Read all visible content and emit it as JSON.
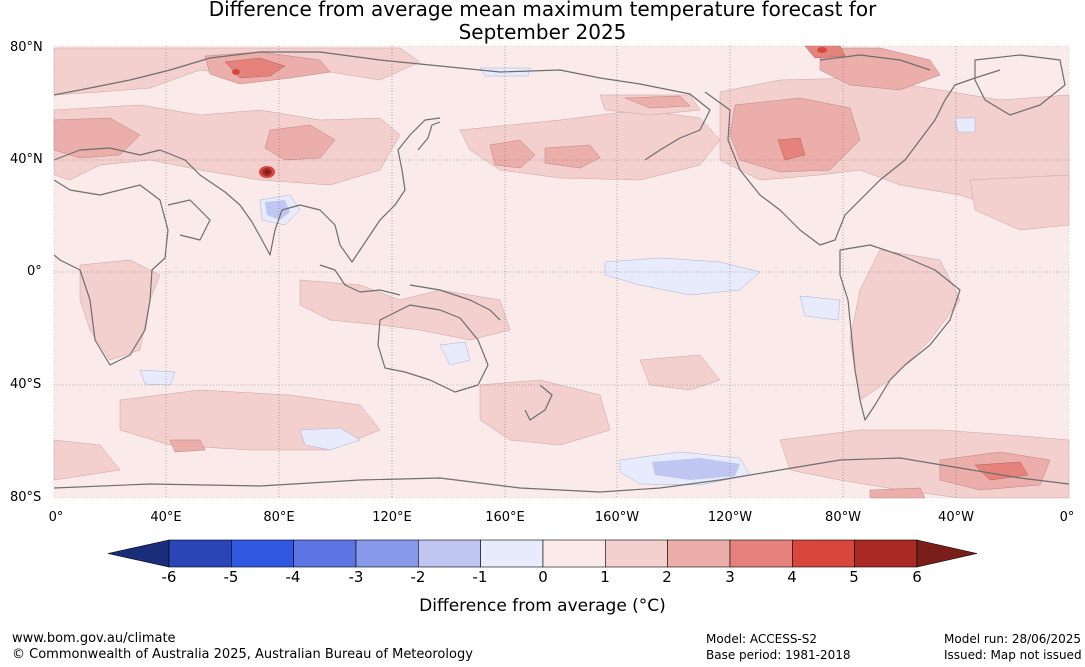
{
  "title": {
    "line1": "Difference from average mean maximum temperature forecast for",
    "line2": "September 2025"
  },
  "map": {
    "lat_labels": [
      "80°N",
      "40°N",
      "0°",
      "40°S",
      "80°S"
    ],
    "lon_labels": [
      "0°",
      "40°E",
      "80°E",
      "120°E",
      "160°E",
      "160°W",
      "120°W",
      "80°W",
      "40°W",
      "0°"
    ],
    "land_outline_color": "#6e6e6e",
    "grid_style": "dotted"
  },
  "colorbar": {
    "label": "Difference from average (°C)",
    "ticks": [
      "-6",
      "-5",
      "-4",
      "-3",
      "-2",
      "-1",
      "0",
      "1",
      "2",
      "3",
      "4",
      "5",
      "6"
    ],
    "colors": [
      "#1b2d7a",
      "#2a45b8",
      "#3158e0",
      "#5d75e3",
      "#8899ea",
      "#bfc6f2",
      "#e8ebfb",
      "#fbeaea",
      "#f3cfce",
      "#ecaeab",
      "#e5827c",
      "#d8473e",
      "#a92a25",
      "#7a1e1a"
    ]
  },
  "footer": {
    "url": "www.bom.gov.au/climate",
    "copyright": "© Commonwealth of Australia 2025, Australian Bureau of Meteorology",
    "model": "Model: ACCESS-S2",
    "base_period": "Base period: 1981-2018",
    "model_run": "Model run: 28/06/2025",
    "issued": "Issued: Map not issued"
  }
}
